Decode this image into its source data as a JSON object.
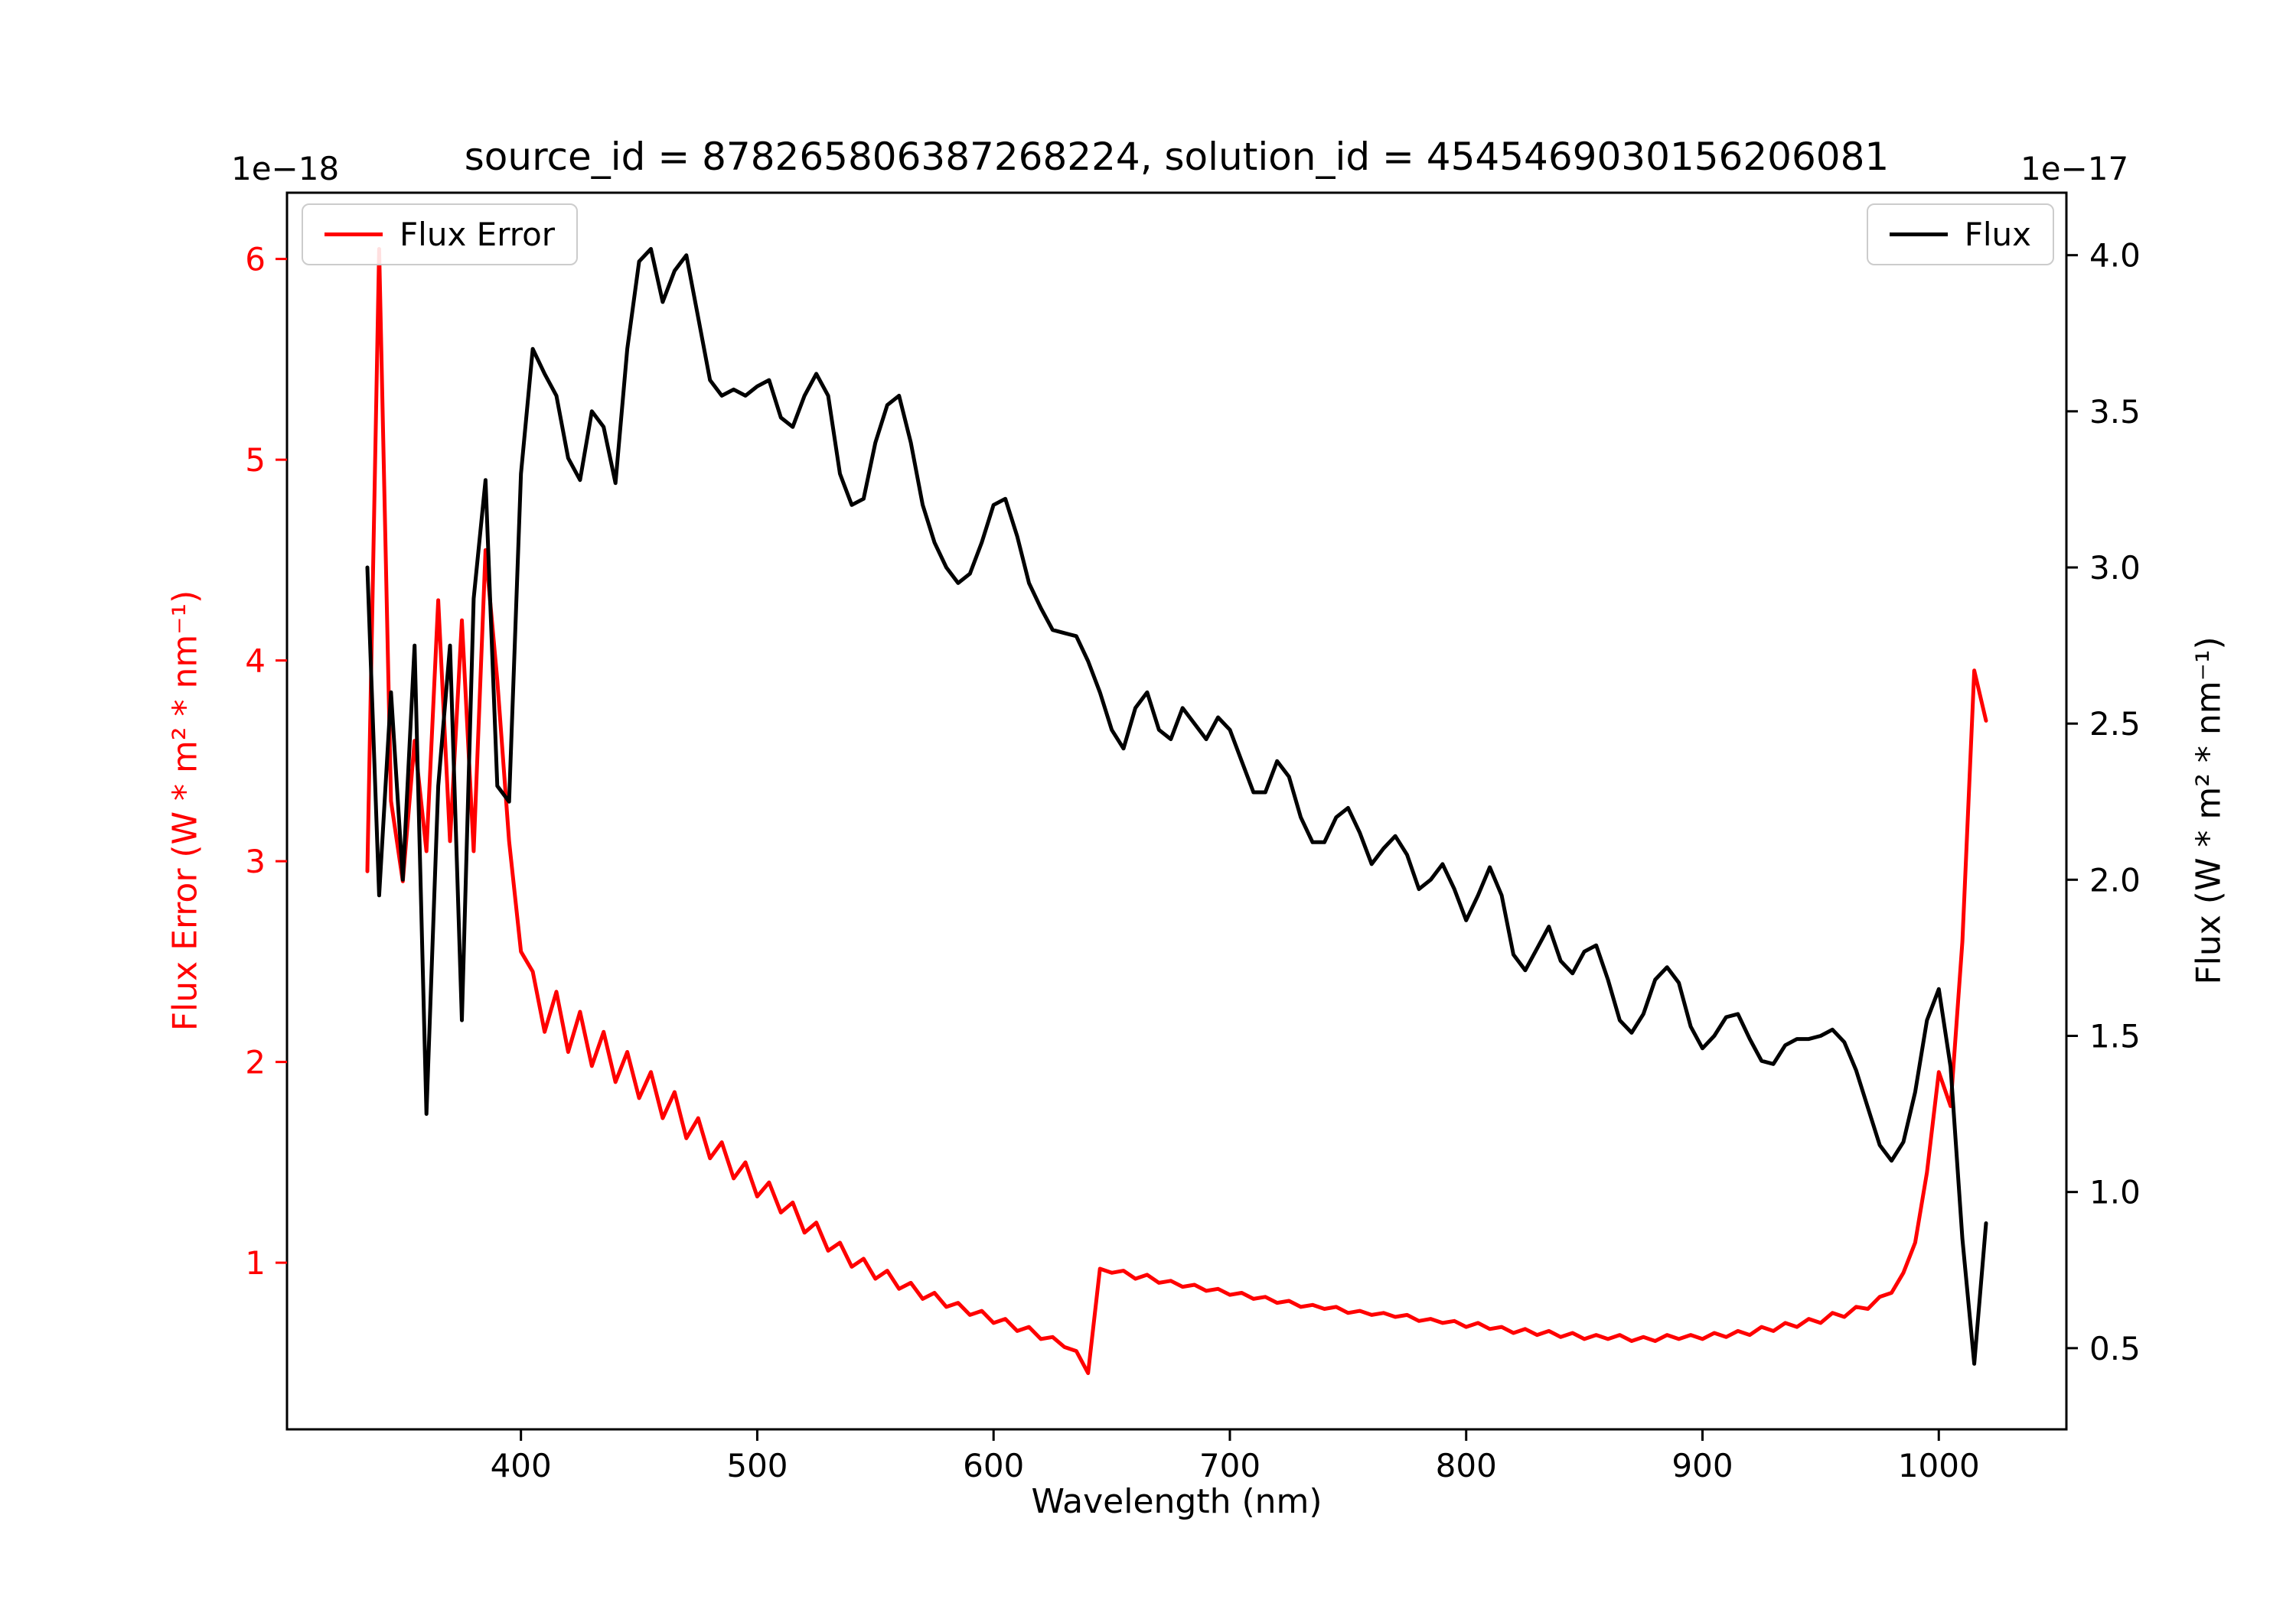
{
  "chart_data": {
    "type": "line",
    "title": "source_id = 878265806387268224, solution_id = 4545469030156206081",
    "xlabel": "Wavelength (nm)",
    "grid": false,
    "legends": [
      {
        "label": "Flux Error",
        "color": "#ff0000",
        "position": "upper-left"
      },
      {
        "label": "Flux",
        "color": "#000000",
        "position": "upper-right"
      }
    ],
    "axes": {
      "x": {
        "range": [
          301,
          1054
        ],
        "ticks": [
          400,
          500,
          600,
          700,
          800,
          900,
          1000
        ],
        "tick_labels": [
          "400",
          "500",
          "600",
          "700",
          "800",
          "900",
          "1000"
        ]
      },
      "left": {
        "label": "Flux Error (W * m² * nm⁻¹)",
        "offset": "1e−18",
        "unit_scale": "1e-18",
        "range": [
          0.17,
          6.33
        ],
        "ticks": [
          1,
          2,
          3,
          4,
          5,
          6
        ],
        "tick_labels": [
          "1",
          "2",
          "3",
          "4",
          "5",
          "6"
        ],
        "color": "#ff0000"
      },
      "right": {
        "label": "Flux (W * m² * nm⁻¹)",
        "offset": "1e−17",
        "unit_scale": "1e-17",
        "range": [
          0.24,
          4.2
        ],
        "ticks": [
          0.5,
          1.0,
          1.5,
          2.0,
          2.5,
          3.0,
          3.5,
          4.0
        ],
        "tick_labels": [
          "0.5",
          "1.0",
          "1.5",
          "2.0",
          "2.5",
          "3.0",
          "3.5",
          "4.0"
        ],
        "color": "#000000"
      }
    },
    "x": [
      335,
      340,
      345,
      350,
      355,
      360,
      365,
      370,
      375,
      380,
      385,
      390,
      395,
      400,
      405,
      410,
      415,
      420,
      425,
      430,
      435,
      440,
      445,
      450,
      455,
      460,
      465,
      470,
      475,
      480,
      485,
      490,
      495,
      500,
      505,
      510,
      515,
      520,
      525,
      530,
      535,
      540,
      545,
      550,
      555,
      560,
      565,
      570,
      575,
      580,
      585,
      590,
      595,
      600,
      605,
      610,
      615,
      620,
      625,
      630,
      635,
      640,
      645,
      650,
      655,
      660,
      665,
      670,
      675,
      680,
      685,
      690,
      695,
      700,
      705,
      710,
      715,
      720,
      725,
      730,
      735,
      740,
      745,
      750,
      755,
      760,
      765,
      770,
      775,
      780,
      785,
      790,
      795,
      800,
      805,
      810,
      815,
      820,
      825,
      830,
      835,
      840,
      845,
      850,
      855,
      860,
      865,
      870,
      875,
      880,
      885,
      890,
      895,
      900,
      905,
      910,
      915,
      920,
      925,
      930,
      935,
      940,
      945,
      950,
      955,
      960,
      965,
      970,
      975,
      980,
      985,
      990,
      995,
      1000,
      1005,
      1010,
      1015,
      1020
    ],
    "series": [
      {
        "name": "Flux Error",
        "axis": "left",
        "color": "#ff0000",
        "values": [
          2.95,
          6.05,
          3.3,
          2.9,
          3.6,
          3.05,
          4.3,
          3.1,
          4.2,
          3.05,
          4.55,
          3.9,
          3.1,
          2.55,
          2.45,
          2.15,
          2.35,
          2.05,
          2.25,
          1.98,
          2.15,
          1.9,
          2.05,
          1.82,
          1.95,
          1.72,
          1.85,
          1.62,
          1.72,
          1.52,
          1.6,
          1.42,
          1.5,
          1.33,
          1.4,
          1.25,
          1.3,
          1.15,
          1.2,
          1.06,
          1.1,
          0.98,
          1.02,
          0.92,
          0.96,
          0.87,
          0.9,
          0.82,
          0.85,
          0.78,
          0.8,
          0.74,
          0.76,
          0.7,
          0.72,
          0.66,
          0.68,
          0.62,
          0.63,
          0.58,
          0.56,
          0.45,
          0.97,
          0.95,
          0.96,
          0.92,
          0.94,
          0.9,
          0.91,
          0.88,
          0.89,
          0.86,
          0.87,
          0.84,
          0.85,
          0.82,
          0.83,
          0.8,
          0.81,
          0.78,
          0.79,
          0.77,
          0.78,
          0.75,
          0.76,
          0.74,
          0.75,
          0.73,
          0.74,
          0.71,
          0.72,
          0.7,
          0.71,
          0.68,
          0.7,
          0.67,
          0.68,
          0.65,
          0.67,
          0.64,
          0.66,
          0.63,
          0.65,
          0.62,
          0.64,
          0.62,
          0.64,
          0.61,
          0.63,
          0.61,
          0.64,
          0.62,
          0.64,
          0.62,
          0.65,
          0.63,
          0.66,
          0.64,
          0.68,
          0.66,
          0.7,
          0.68,
          0.72,
          0.7,
          0.75,
          0.73,
          0.78,
          0.77,
          0.83,
          0.85,
          0.95,
          1.1,
          1.45,
          1.95,
          1.78,
          2.6,
          3.95,
          3.7
        ]
      },
      {
        "name": "Flux",
        "axis": "right",
        "color": "#000000",
        "values": [
          3.0,
          1.95,
          2.6,
          2.0,
          2.75,
          1.25,
          2.3,
          2.75,
          1.55,
          2.9,
          3.28,
          2.3,
          2.25,
          3.3,
          3.7,
          3.62,
          3.55,
          3.35,
          3.28,
          3.5,
          3.45,
          3.27,
          3.7,
          3.98,
          4.02,
          3.85,
          3.95,
          4.0,
          3.8,
          3.6,
          3.55,
          3.57,
          3.55,
          3.58,
          3.6,
          3.48,
          3.45,
          3.55,
          3.62,
          3.55,
          3.3,
          3.2,
          3.22,
          3.4,
          3.52,
          3.55,
          3.4,
          3.2,
          3.08,
          3.0,
          2.95,
          2.98,
          3.08,
          3.2,
          3.22,
          3.1,
          2.95,
          2.87,
          2.8,
          2.79,
          2.78,
          2.7,
          2.6,
          2.48,
          2.42,
          2.55,
          2.6,
          2.48,
          2.45,
          2.55,
          2.5,
          2.45,
          2.52,
          2.48,
          2.38,
          2.28,
          2.28,
          2.38,
          2.33,
          2.2,
          2.12,
          2.12,
          2.2,
          2.23,
          2.15,
          2.05,
          2.1,
          2.14,
          2.08,
          1.97,
          2.0,
          2.05,
          1.97,
          1.87,
          1.95,
          2.04,
          1.95,
          1.76,
          1.71,
          1.78,
          1.85,
          1.74,
          1.7,
          1.77,
          1.79,
          1.68,
          1.55,
          1.51,
          1.57,
          1.68,
          1.72,
          1.67,
          1.53,
          1.46,
          1.5,
          1.56,
          1.57,
          1.49,
          1.42,
          1.41,
          1.47,
          1.49,
          1.49,
          1.5,
          1.52,
          1.48,
          1.39,
          1.27,
          1.15,
          1.1,
          1.16,
          1.32,
          1.55,
          1.65,
          1.4,
          0.85,
          0.45,
          0.9
        ]
      }
    ]
  }
}
